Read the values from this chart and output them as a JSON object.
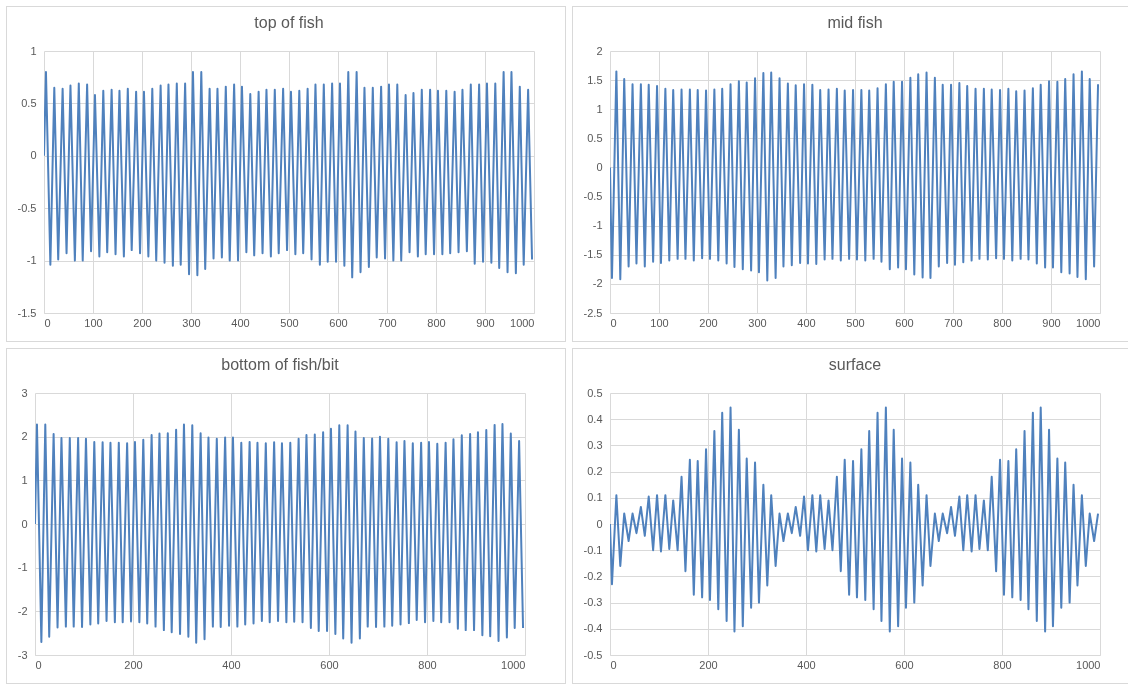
{
  "chart_data": [
    {
      "type": "line",
      "title": "top of fish",
      "xlim": [
        0,
        1000
      ],
      "xticks": [
        0,
        100,
        200,
        300,
        400,
        500,
        600,
        700,
        800,
        900,
        1000
      ],
      "ylim": [
        -1.5,
        1
      ],
      "yticks": [
        -1.5,
        -1,
        -0.5,
        0,
        0.5,
        1
      ],
      "grid": true,
      "x": [
        0,
        4,
        13,
        21,
        29,
        38,
        46,
        54,
        63,
        71,
        79,
        88,
        96,
        104,
        113,
        121,
        129,
        138,
        146,
        154,
        163,
        171,
        179,
        188,
        196,
        204,
        213,
        221,
        229,
        238,
        246,
        254,
        263,
        271,
        279,
        288,
        296,
        304,
        313,
        321,
        329,
        338,
        346,
        354,
        363,
        371,
        379,
        388,
        396,
        404,
        413,
        421,
        429,
        438,
        446,
        454,
        463,
        471,
        479,
        488,
        496,
        504,
        513,
        521,
        529,
        538,
        546,
        554,
        563,
        571,
        579,
        588,
        596,
        604,
        613,
        621,
        629,
        638,
        646,
        654,
        663,
        671,
        679,
        688,
        696,
        704,
        713,
        721,
        729,
        738,
        746,
        754,
        763,
        771,
        779,
        788,
        796,
        804,
        813,
        821,
        829,
        838,
        846,
        854,
        863,
        871,
        879,
        888,
        896,
        904,
        913,
        921,
        929,
        938,
        946,
        954,
        963,
        971,
        979,
        988,
        996
      ],
      "series": [
        {
          "color": "#4f81bd",
          "values": [
            0,
            0.8,
            -1.04,
            0.65,
            -0.99,
            0.64,
            -0.93,
            0.67,
            -1.0,
            0.69,
            -1.0,
            0.68,
            -0.91,
            0.58,
            -0.96,
            0.62,
            -0.92,
            0.63,
            -0.94,
            0.62,
            -0.96,
            0.64,
            -0.9,
            0.61,
            -0.93,
            0.61,
            -0.96,
            0.64,
            -1.0,
            0.67,
            -1.02,
            0.68,
            -1.05,
            0.69,
            -1.04,
            0.69,
            -1.13,
            0.8,
            -1.14,
            0.8,
            -1.08,
            0.64,
            -0.98,
            0.64,
            -0.97,
            0.66,
            -1.0,
            0.68,
            -1.0,
            0.66,
            -0.92,
            0.59,
            -0.95,
            0.61,
            -0.93,
            0.63,
            -0.96,
            0.63,
            -0.93,
            0.64,
            -0.9,
            0.61,
            -0.94,
            0.62,
            -0.93,
            0.64,
            -0.99,
            0.68,
            -1.04,
            0.68,
            -1.01,
            0.69,
            -1.01,
            0.69,
            -1.05,
            0.8,
            -1.16,
            0.8,
            -1.11,
            0.65,
            -1.06,
            0.65,
            -0.97,
            0.66,
            -0.98,
            0.68,
            -1.0,
            0.68,
            -1.0,
            0.58,
            -0.92,
            0.6,
            -0.96,
            0.63,
            -0.94,
            0.63,
            -0.94,
            0.62,
            -0.94,
            0.62,
            -0.93,
            0.61,
            -0.92,
            0.63,
            -0.91,
            0.68,
            -1.03,
            0.68,
            -1.01,
            0.69,
            -1.02,
            0.69,
            -1.07,
            0.8,
            -1.11,
            0.8,
            -1.12,
            0.66,
            -1.04,
            0.63,
            -0.99
          ]
        }
      ]
    },
    {
      "type": "line",
      "title": "mid fish",
      "xlim": [
        0,
        1000
      ],
      "xticks": [
        0,
        100,
        200,
        300,
        400,
        500,
        600,
        700,
        800,
        900,
        1000
      ],
      "ylim": [
        -2.5,
        2
      ],
      "yticks": [
        -2.5,
        -2,
        -1.5,
        -1,
        -0.5,
        0,
        0.5,
        1,
        1.5,
        2
      ],
      "grid": true,
      "x": [
        0,
        4,
        13,
        21,
        29,
        38,
        46,
        54,
        63,
        71,
        79,
        88,
        96,
        104,
        113,
        121,
        129,
        138,
        146,
        154,
        163,
        171,
        179,
        188,
        196,
        204,
        213,
        221,
        229,
        238,
        246,
        254,
        263,
        271,
        279,
        288,
        296,
        304,
        313,
        321,
        329,
        338,
        346,
        354,
        363,
        371,
        379,
        388,
        396,
        404,
        413,
        421,
        429,
        438,
        446,
        454,
        463,
        471,
        479,
        488,
        496,
        504,
        513,
        521,
        529,
        538,
        546,
        554,
        563,
        571,
        579,
        588,
        596,
        604,
        613,
        621,
        629,
        638,
        646,
        654,
        663,
        671,
        679,
        688,
        696,
        704,
        713,
        721,
        729,
        738,
        746,
        754,
        763,
        771,
        779,
        788,
        796,
        804,
        813,
        821,
        829,
        838,
        846,
        854,
        863,
        871,
        879,
        888,
        896,
        904,
        913,
        921,
        929,
        938,
        946,
        954,
        963,
        971,
        979,
        988,
        996
      ],
      "series": [
        {
          "color": "#4f81bd",
          "values": [
            0,
            -1.9,
            1.65,
            -1.92,
            1.52,
            -1.7,
            1.43,
            -1.65,
            1.43,
            -1.7,
            1.42,
            -1.62,
            1.4,
            -1.64,
            1.35,
            -1.6,
            1.33,
            -1.57,
            1.34,
            -1.57,
            1.34,
            -1.6,
            1.33,
            -1.56,
            1.32,
            -1.57,
            1.34,
            -1.6,
            1.35,
            -1.65,
            1.43,
            -1.71,
            1.48,
            -1.75,
            1.46,
            -1.77,
            1.53,
            -1.8,
            1.62,
            -1.94,
            1.63,
            -1.9,
            1.53,
            -1.7,
            1.44,
            -1.68,
            1.41,
            -1.64,
            1.43,
            -1.65,
            1.42,
            -1.66,
            1.33,
            -1.58,
            1.34,
            -1.57,
            1.35,
            -1.6,
            1.32,
            -1.57,
            1.33,
            -1.58,
            1.33,
            -1.6,
            1.32,
            -1.57,
            1.36,
            -1.62,
            1.43,
            -1.75,
            1.47,
            -1.72,
            1.47,
            -1.75,
            1.54,
            -1.84,
            1.6,
            -1.89,
            1.63,
            -1.9,
            1.54,
            -1.7,
            1.42,
            -1.64,
            1.42,
            -1.67,
            1.45,
            -1.63,
            1.4,
            -1.6,
            1.35,
            -1.57,
            1.35,
            -1.58,
            1.34,
            -1.56,
            1.33,
            -1.57,
            1.35,
            -1.6,
            1.31,
            -1.57,
            1.32,
            -1.58,
            1.36,
            -1.65,
            1.42,
            -1.72,
            1.48,
            -1.72,
            1.47,
            -1.8,
            1.52,
            -1.82,
            1.6,
            -1.88,
            1.65,
            -1.92,
            1.52,
            -1.7,
            1.43
          ]
        }
      ]
    },
    {
      "type": "line",
      "title": "bottom of fish/bit",
      "xlim": [
        0,
        1000
      ],
      "xticks": [
        0,
        200,
        400,
        600,
        800,
        1000
      ],
      "ylim": [
        -3,
        3
      ],
      "yticks": [
        -3,
        -2,
        -1,
        0,
        1,
        2,
        3
      ],
      "grid": true,
      "x": [
        0,
        4,
        13,
        21,
        29,
        38,
        46,
        54,
        63,
        71,
        79,
        88,
        96,
        104,
        113,
        121,
        129,
        138,
        146,
        154,
        163,
        171,
        179,
        188,
        196,
        204,
        213,
        221,
        229,
        238,
        246,
        254,
        263,
        271,
        279,
        288,
        296,
        304,
        313,
        321,
        329,
        338,
        346,
        354,
        363,
        371,
        379,
        388,
        396,
        404,
        413,
        421,
        429,
        438,
        446,
        454,
        463,
        471,
        479,
        488,
        496,
        504,
        513,
        521,
        529,
        538,
        546,
        554,
        563,
        571,
        579,
        588,
        596,
        604,
        613,
        621,
        629,
        638,
        646,
        654,
        663,
        671,
        679,
        688,
        696,
        704,
        713,
        721,
        729,
        738,
        746,
        754,
        763,
        771,
        779,
        788,
        796,
        804,
        813,
        821,
        829,
        838,
        846,
        854,
        863,
        871,
        879,
        888,
        896,
        904,
        913,
        921,
        929,
        938,
        946,
        954,
        963,
        971,
        979,
        988,
        996
      ],
      "series": [
        {
          "color": "#4f81bd",
          "values": [
            0,
            2.28,
            -2.7,
            2.28,
            -2.58,
            2.06,
            -2.37,
            1.97,
            -2.35,
            1.97,
            -2.35,
            1.97,
            -2.36,
            1.95,
            -2.3,
            1.88,
            -2.28,
            1.87,
            -2.22,
            1.86,
            -2.25,
            1.86,
            -2.25,
            1.85,
            -2.23,
            1.88,
            -2.25,
            1.93,
            -2.28,
            2.04,
            -2.35,
            2.07,
            -2.43,
            2.08,
            -2.48,
            2.16,
            -2.52,
            2.28,
            -2.58,
            2.26,
            -2.72,
            2.08,
            -2.64,
            1.98,
            -2.35,
            1.95,
            -2.36,
            1.98,
            -2.33,
            1.98,
            -2.35,
            1.86,
            -2.3,
            1.88,
            -2.28,
            1.86,
            -2.22,
            1.85,
            -2.25,
            1.87,
            -2.22,
            1.85,
            -2.25,
            1.86,
            -2.24,
            1.95,
            -2.25,
            2.04,
            -2.38,
            2.05,
            -2.45,
            2.1,
            -2.45,
            2.18,
            -2.52,
            2.26,
            -2.62,
            2.26,
            -2.72,
            2.12,
            -2.62,
            1.97,
            -2.35,
            1.96,
            -2.36,
            2.0,
            -2.35,
            1.95,
            -2.33,
            1.87,
            -2.3,
            1.9,
            -2.27,
            1.85,
            -2.2,
            1.86,
            -2.25,
            1.88,
            -2.22,
            1.84,
            -2.25,
            1.86,
            -2.25,
            1.94,
            -2.4,
            2.03,
            -2.43,
            2.06,
            -2.43,
            2.1,
            -2.55,
            2.15,
            -2.57,
            2.27,
            -2.68,
            2.29,
            -2.6,
            2.07,
            -2.38,
            1.9,
            -2.38
          ]
        }
      ]
    },
    {
      "type": "line",
      "title": "surface",
      "xlim": [
        0,
        1000
      ],
      "xticks": [
        0,
        200,
        400,
        600,
        800,
        1000
      ],
      "ylim": [
        -0.5,
        0.5
      ],
      "yticks": [
        -0.5,
        -0.4,
        -0.3,
        -0.2,
        -0.1,
        0,
        0.1,
        0.2,
        0.3,
        0.4,
        0.5
      ],
      "grid": true,
      "x": [
        0,
        4,
        13,
        21,
        29,
        38,
        46,
        54,
        63,
        71,
        79,
        88,
        96,
        104,
        113,
        121,
        129,
        138,
        146,
        154,
        163,
        171,
        179,
        188,
        196,
        204,
        213,
        221,
        229,
        238,
        246,
        254,
        263,
        271,
        279,
        288,
        296,
        304,
        313,
        321,
        329,
        338,
        346,
        354,
        363,
        371,
        379,
        388,
        396,
        404,
        413,
        421,
        429,
        438,
        446,
        454,
        463,
        471,
        479,
        488,
        496,
        504,
        513,
        521,
        529,
        538,
        546,
        554,
        563,
        571,
        579,
        588,
        596,
        604,
        613,
        621,
        629,
        638,
        646,
        654,
        663,
        671,
        679,
        688,
        696,
        704,
        713,
        721,
        729,
        738,
        746,
        754,
        763,
        771,
        779,
        788,
        796,
        804,
        813,
        821,
        829,
        838,
        846,
        854,
        863,
        871,
        879,
        888,
        896,
        904,
        913,
        921,
        929,
        938,
        946,
        954,
        963,
        971,
        979,
        988,
        996
      ],
      "series": [
        {
          "color": "#4f81bd",
          "values": [
            0,
            -0.23,
            0.11,
            -0.16,
            0.04,
            -0.065,
            0.04,
            -0.035,
            0.065,
            -0.045,
            0.105,
            -0.1,
            0.11,
            -0.105,
            0.11,
            -0.095,
            0.09,
            -0.1,
            0.18,
            -0.18,
            0.245,
            -0.27,
            0.24,
            -0.28,
            0.285,
            -0.29,
            0.355,
            -0.325,
            0.425,
            -0.37,
            0.445,
            -0.41,
            0.36,
            -0.39,
            0.25,
            -0.32,
            0.235,
            -0.3,
            0.15,
            -0.235,
            0.11,
            -0.16,
            0.04,
            -0.065,
            0.04,
            -0.035,
            0.065,
            -0.045,
            0.105,
            -0.1,
            0.11,
            -0.105,
            0.11,
            -0.095,
            0.09,
            -0.1,
            0.18,
            -0.18,
            0.245,
            -0.27,
            0.24,
            -0.28,
            0.285,
            -0.29,
            0.355,
            -0.325,
            0.425,
            -0.37,
            0.445,
            -0.41,
            0.36,
            -0.39,
            0.25,
            -0.32,
            0.235,
            -0.3,
            0.15,
            -0.235,
            0.11,
            -0.16,
            0.04,
            -0.065,
            0.04,
            -0.035,
            0.065,
            -0.045,
            0.105,
            -0.1,
            0.11,
            -0.105,
            0.11,
            -0.095,
            0.09,
            -0.1,
            0.18,
            -0.18,
            0.245,
            -0.27,
            0.24,
            -0.28,
            0.285,
            -0.29,
            0.355,
            -0.325,
            0.425,
            -0.37,
            0.445,
            -0.41,
            0.36,
            -0.39,
            0.25,
            -0.32,
            0.235,
            -0.3,
            0.15,
            -0.235,
            0.11,
            -0.16,
            0.04,
            -0.065,
            0.04
          ]
        }
      ]
    }
  ]
}
